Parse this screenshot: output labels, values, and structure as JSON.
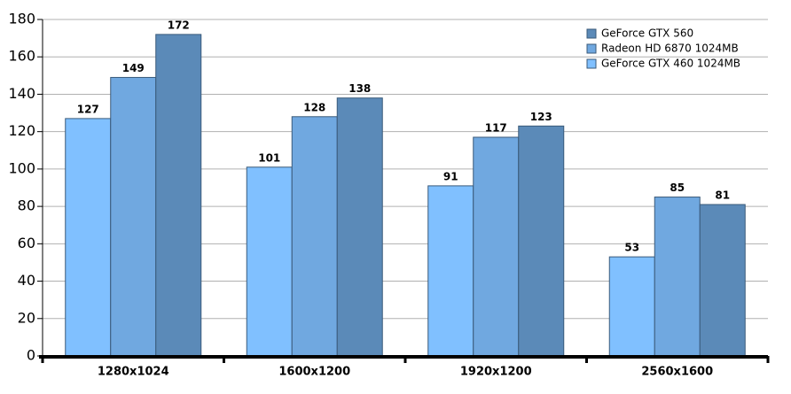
{
  "chart_data": {
    "type": "bar",
    "categories": [
      "1280x1024",
      "1600x1200",
      "1920x1200",
      "2560x1600"
    ],
    "series": [
      {
        "name": "GeForce GTX 460 1024MB",
        "color": "#80c0ff",
        "values": [
          127,
          101,
          91,
          53
        ]
      },
      {
        "name": "Radeon HD 6870 1024MB",
        "color": "#70a8e0",
        "values": [
          149,
          128,
          117,
          85
        ]
      },
      {
        "name": "GeForce GTX 560",
        "color": "#5b8ab8",
        "values": [
          172,
          138,
          123,
          81
        ]
      }
    ],
    "ylim": [
      0,
      180
    ],
    "yticks": [
      0,
      20,
      40,
      60,
      80,
      100,
      120,
      140,
      160,
      180
    ],
    "grid": true
  }
}
